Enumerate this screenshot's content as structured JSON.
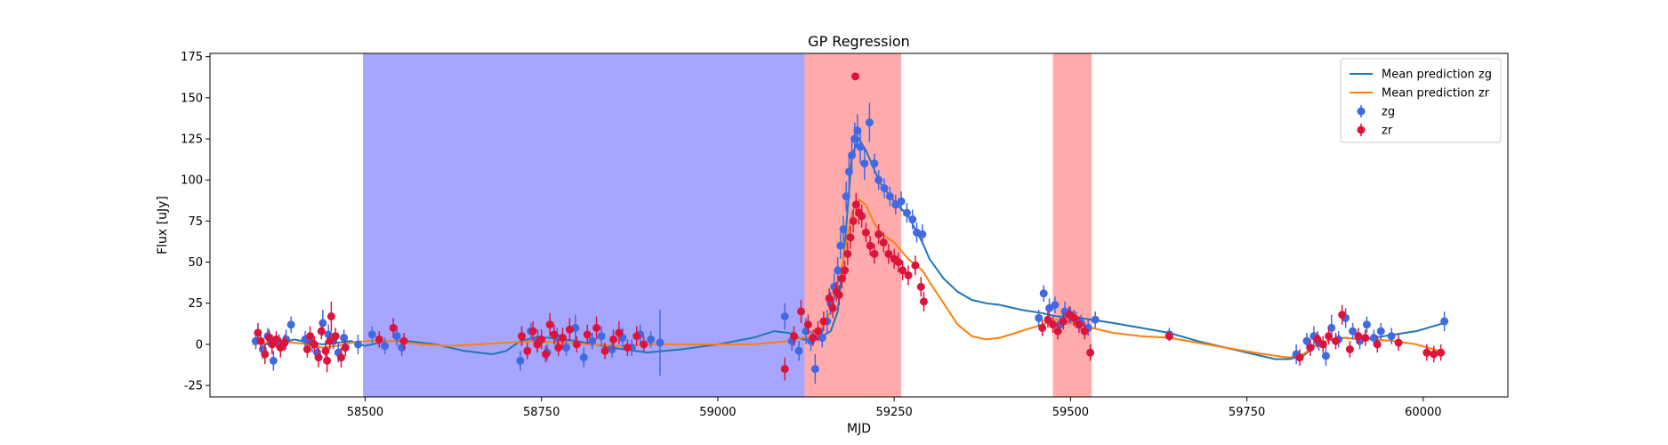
{
  "chart_data": {
    "type": "scatter",
    "title": "GP Regression",
    "xlabel": "MJD",
    "ylabel": "Flux [uJy]",
    "xlim": [
      58280,
      60120
    ],
    "ylim": [
      -32,
      177
    ],
    "x_ticks": [
      58500,
      58750,
      59000,
      59250,
      59500,
      59750,
      60000
    ],
    "y_ticks": [
      -25,
      0,
      25,
      50,
      75,
      100,
      125,
      150,
      175
    ],
    "legend_position": "top-right",
    "legend": [
      "Mean prediction zg",
      "Mean prediction zr",
      "zg",
      "zr"
    ],
    "spans": [
      {
        "x0": 58497,
        "x1": 59123,
        "color": "#0000ff",
        "opacity": 0.35
      },
      {
        "x0": 59123,
        "x1": 59208,
        "color": "#ff0000",
        "opacity": 0.33
      },
      {
        "x0": 59208,
        "x1": 59260,
        "color": "#ff0000",
        "opacity": 0.33
      },
      {
        "x0": 59475,
        "x1": 59530,
        "color": "#ff0000",
        "opacity": 0.33
      }
    ],
    "series": [
      {
        "name": "Mean prediction zg",
        "kind": "line",
        "color": "#1f77b4",
        "x": [
          58340,
          58360,
          58380,
          58400,
          58420,
          58440,
          58460,
          58480,
          58500,
          58530,
          58560,
          58600,
          58640,
          58680,
          58700,
          58720,
          58740,
          58760,
          58800,
          58850,
          58900,
          58950,
          59000,
          59050,
          59080,
          59100,
          59120,
          59140,
          59160,
          59170,
          59180,
          59190,
          59200,
          59210,
          59220,
          59230,
          59250,
          59270,
          59290,
          59300,
          59320,
          59340,
          59360,
          59380,
          59400,
          59430,
          59460,
          59480,
          59500,
          59530,
          59560,
          59600,
          59640,
          59680,
          59720,
          59760,
          59790,
          59810,
          59830,
          59850,
          59870,
          59890,
          59910,
          59930,
          59960,
          59990,
          60030
        ],
        "y": [
          2,
          0,
          1,
          3,
          1,
          0,
          1,
          2,
          -1,
          2,
          2,
          0,
          -4,
          -6,
          -4,
          2,
          4,
          4,
          2,
          -2,
          -5,
          -3,
          0,
          4,
          8,
          7,
          3,
          3,
          8,
          20,
          60,
          115,
          125,
          118,
          108,
          98,
          87,
          78,
          62,
          52,
          40,
          32,
          27,
          25,
          24,
          21,
          19,
          17,
          17,
          15,
          13,
          10,
          7,
          2,
          -2,
          -6,
          -9,
          -9,
          -7,
          0,
          3,
          4,
          3,
          4,
          6,
          8,
          13
        ]
      },
      {
        "name": "Mean prediction zr",
        "kind": "line",
        "color": "#ff7f0e",
        "x": [
          58340,
          58360,
          58380,
          58400,
          58420,
          58440,
          58460,
          58480,
          58500,
          58540,
          58580,
          58620,
          58660,
          58700,
          58740,
          58780,
          58820,
          58860,
          58900,
          58950,
          59000,
          59050,
          59100,
          59120,
          59140,
          59160,
          59175,
          59190,
          59200,
          59210,
          59220,
          59230,
          59250,
          59270,
          59290,
          59300,
          59320,
          59340,
          59360,
          59380,
          59400,
          59430,
          59460,
          59480,
          59500,
          59530,
          59560,
          59600,
          59640,
          59680,
          59720,
          59760,
          59790,
          59810,
          59830,
          59850,
          59870,
          59890,
          59910,
          59930,
          59960,
          59990,
          60030
        ],
        "y": [
          0,
          1,
          2,
          1,
          0,
          -2,
          -1,
          1,
          2,
          2,
          0,
          -1,
          0,
          1,
          2,
          1,
          0,
          -1,
          0,
          0,
          0,
          0,
          2,
          4,
          5,
          20,
          45,
          80,
          88,
          85,
          75,
          68,
          62,
          52,
          45,
          38,
          25,
          12,
          5,
          3,
          4,
          8,
          12,
          15,
          13,
          10,
          7,
          5,
          4,
          1,
          -2,
          -5,
          -7,
          -8,
          -6,
          0,
          3,
          4,
          3,
          3,
          2,
          0,
          -5
        ]
      },
      {
        "name": "zg",
        "kind": "points",
        "color": "#4169e1",
        "x": [
          58345,
          58355,
          58362,
          58370,
          58378,
          58388,
          58395,
          58415,
          58425,
          58432,
          58440,
          58448,
          58455,
          58462,
          58470,
          58490,
          58510,
          58528,
          58545,
          58552,
          58720,
          58735,
          58745,
          58758,
          58772,
          58785,
          58798,
          58810,
          58822,
          58835,
          58850,
          58865,
          58878,
          58890,
          58905,
          58918,
          59095,
          59105,
          59115,
          59125,
          59132,
          59138,
          59148,
          59155,
          59160,
          59165,
          59170,
          59174,
          59178,
          59182,
          59186,
          59190,
          59194,
          59198,
          59202,
          59208,
          59215,
          59222,
          59228,
          59236,
          59244,
          59252,
          59260,
          59268,
          59276,
          59282,
          59290,
          59455,
          59462,
          59470,
          59478,
          59485,
          59492,
          59500,
          59508,
          59515,
          59525,
          59535,
          59640,
          59820,
          59835,
          59845,
          59852,
          59862,
          59870,
          59880,
          59890,
          59900,
          59910,
          59920,
          59930,
          59940,
          59955,
          60030
        ],
        "y": [
          2,
          -3,
          5,
          -10,
          1,
          3,
          12,
          3,
          1,
          -5,
          13,
          6,
          2,
          -5,
          4,
          0,
          6,
          -1,
          5,
          -2,
          -10,
          8,
          3,
          -5,
          4,
          -2,
          10,
          -8,
          2,
          5,
          -3,
          4,
          -2,
          6,
          3,
          1,
          17,
          2,
          -4,
          8,
          2,
          -15,
          4,
          14,
          25,
          35,
          45,
          60,
          70,
          90,
          105,
          115,
          125,
          130,
          120,
          110,
          135,
          110,
          100,
          95,
          90,
          85,
          87,
          80,
          76,
          68,
          67,
          16,
          31,
          22,
          24,
          12,
          20,
          18,
          15,
          13,
          10,
          15,
          6,
          -6,
          2,
          5,
          1,
          -7,
          10,
          3,
          16,
          8,
          2,
          12,
          4,
          8,
          5,
          14
        ],
        "yerr": [
          5,
          6,
          5,
          6,
          5,
          6,
          5,
          5,
          6,
          5,
          8,
          6,
          5,
          6,
          5,
          6,
          5,
          5,
          6,
          5,
          6,
          5,
          6,
          5,
          6,
          5,
          8,
          6,
          5,
          6,
          5,
          6,
          5,
          6,
          5,
          20,
          8,
          6,
          6,
          8,
          6,
          9,
          6,
          7,
          7,
          8,
          8,
          8,
          8,
          9,
          10,
          10,
          10,
          10,
          10,
          10,
          12,
          6,
          6,
          6,
          6,
          6,
          6,
          6,
          6,
          6,
          6,
          5,
          5,
          6,
          5,
          5,
          6,
          5,
          5,
          5,
          5,
          5,
          4,
          6,
          5,
          6,
          5,
          6,
          8,
          5,
          6,
          5,
          5,
          5,
          5,
          5,
          5,
          6
        ]
      },
      {
        "name": "zr",
        "kind": "points",
        "color": "#dc143c",
        "x": [
          58348,
          58352,
          58358,
          58364,
          58368,
          58374,
          58380,
          58386,
          58418,
          58422,
          58428,
          58434,
          58438,
          58444,
          58446,
          58450,
          58452,
          58458,
          58466,
          58472,
          58520,
          58540,
          58555,
          58722,
          58730,
          58738,
          58744,
          58750,
          58756,
          58762,
          58768,
          58774,
          58780,
          58790,
          58800,
          58815,
          58828,
          58840,
          58852,
          58860,
          58872,
          58885,
          58895,
          59095,
          59108,
          59118,
          59128,
          59135,
          59142,
          59150,
          59158,
          59163,
          59168,
          59172,
          59176,
          59180,
          59184,
          59188,
          59192,
          59196,
          59200,
          59204,
          59210,
          59216,
          59222,
          59228,
          59235,
          59242,
          59250,
          59256,
          59262,
          59270,
          59280,
          59288,
          59292,
          59195,
          59460,
          59468,
          59475,
          59482,
          59490,
          59498,
          59505,
          59512,
          59520,
          59528,
          59640,
          59825,
          59840,
          59850,
          59858,
          59866,
          59876,
          59885,
          59896,
          59908,
          59918,
          59935,
          59965,
          60005,
          60015,
          60025
        ],
        "y": [
          7,
          2,
          -6,
          4,
          0,
          3,
          -2,
          1,
          -3,
          5,
          0,
          -8,
          8,
          -4,
          -10,
          2,
          17,
          5,
          -8,
          -2,
          3,
          10,
          2,
          5,
          -4,
          8,
          0,
          3,
          -6,
          12,
          6,
          -2,
          4,
          9,
          0,
          6,
          10,
          -4,
          3,
          7,
          -2,
          5,
          0,
          -15,
          5,
          20,
          12,
          4,
          8,
          14,
          28,
          22,
          32,
          30,
          40,
          45,
          55,
          65,
          75,
          85,
          80,
          78,
          68,
          60,
          55,
          67,
          62,
          55,
          52,
          50,
          45,
          42,
          48,
          35,
          26,
          163,
          10,
          15,
          12,
          8,
          14,
          18,
          16,
          12,
          8,
          -5,
          5,
          -8,
          -2,
          3,
          0,
          5,
          2,
          18,
          -3,
          5,
          4,
          0,
          1,
          -5,
          -6,
          -5
        ],
        "yerr": [
          6,
          5,
          6,
          5,
          6,
          5,
          6,
          5,
          5,
          6,
          5,
          6,
          5,
          6,
          7,
          5,
          9,
          5,
          6,
          5,
          5,
          6,
          5,
          6,
          5,
          6,
          5,
          6,
          5,
          7,
          6,
          5,
          6,
          7,
          5,
          6,
          7,
          5,
          6,
          7,
          5,
          6,
          5,
          7,
          6,
          7,
          6,
          5,
          6,
          6,
          6,
          6,
          6,
          6,
          6,
          6,
          7,
          7,
          7,
          7,
          7,
          7,
          6,
          6,
          6,
          6,
          6,
          6,
          6,
          6,
          6,
          6,
          6,
          6,
          6,
          0,
          5,
          5,
          5,
          5,
          5,
          5,
          5,
          5,
          5,
          5,
          3,
          5,
          5,
          5,
          5,
          5,
          5,
          6,
          5,
          5,
          5,
          5,
          5,
          5,
          5,
          5
        ]
      }
    ]
  }
}
